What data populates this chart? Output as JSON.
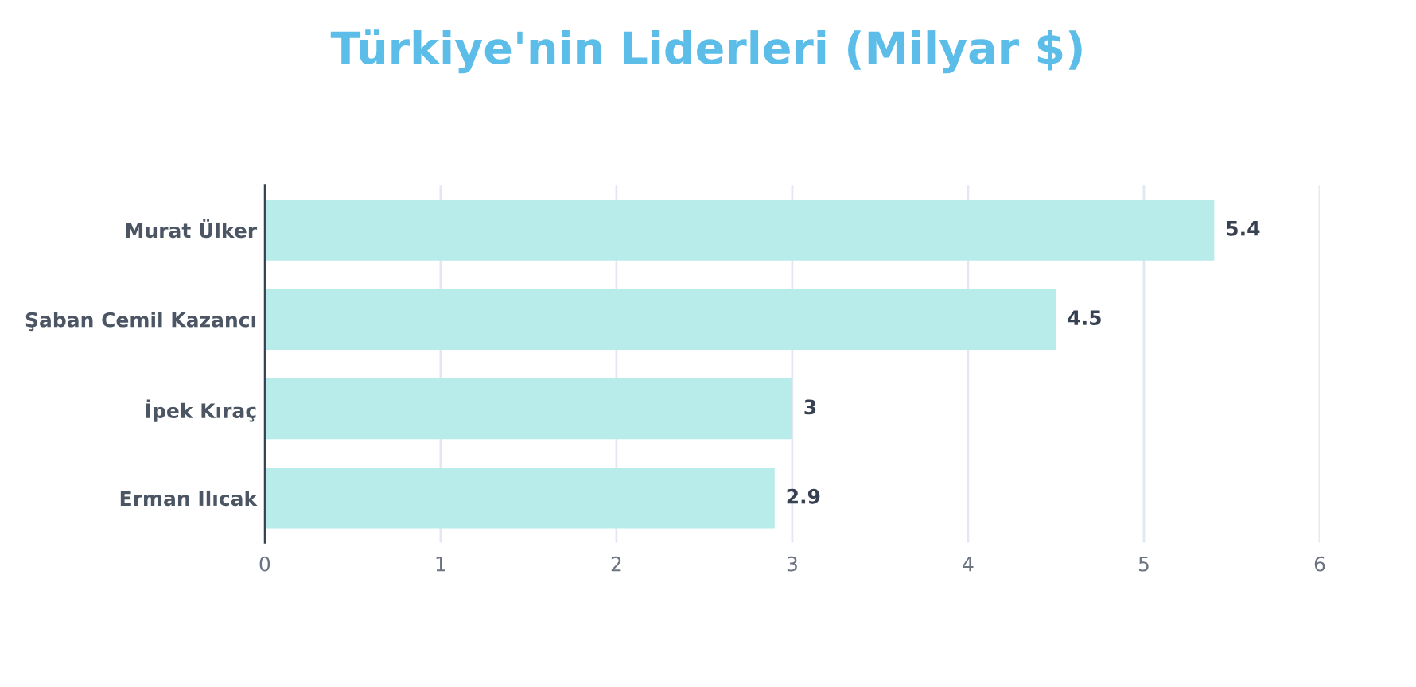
{
  "chart_data": {
    "type": "bar",
    "orientation": "horizontal",
    "title": "Türkiye'nin Liderleri (Milyar $)",
    "categories": [
      "Murat Ülker",
      "Şaban Cemil Kazancı",
      "İpek Kıraç",
      "Erman Ilıcak"
    ],
    "values": [
      5.4,
      4.5,
      3,
      2.9
    ],
    "color": "#b8ecea",
    "data_labels": true,
    "xlim": [
      0,
      6
    ],
    "xticks": [
      0,
      1,
      2,
      3,
      4,
      5,
      6
    ],
    "grid": "x",
    "legend": false
  }
}
